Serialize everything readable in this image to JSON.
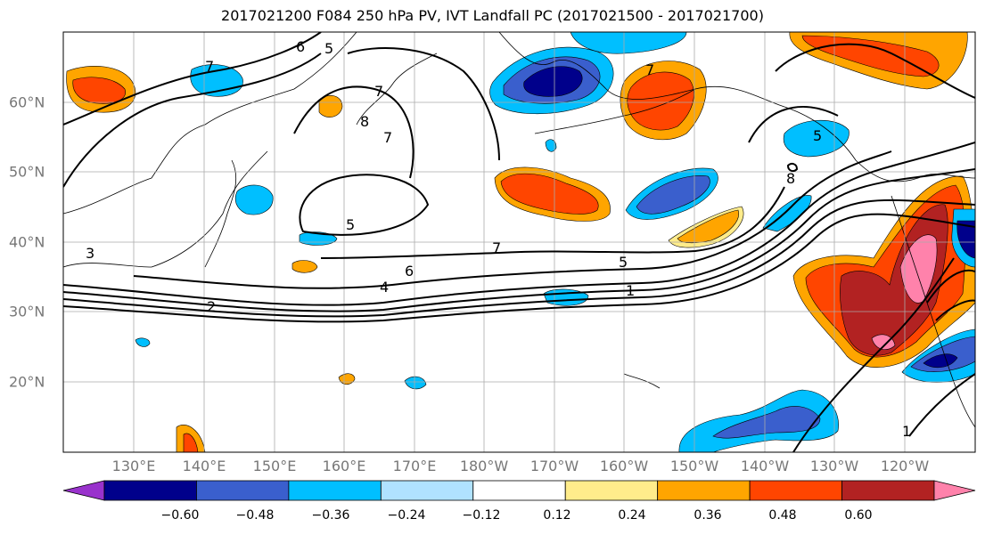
{
  "title": "2017021200 F084 250 hPa PV, IVT Landfall PC (2017021500 - 2017021700)",
  "axes": {
    "lon_labels": [
      "130°E",
      "140°E",
      "150°E",
      "160°E",
      "170°E",
      "180°W",
      "170°W",
      "160°W",
      "150°W",
      "140°W",
      "130°W",
      "120°W"
    ],
    "lat_labels": [
      "60°N",
      "50°N",
      "40°N",
      "30°N",
      "20°N"
    ]
  },
  "contour_labels": [
    "6",
    "5",
    "7",
    "7",
    "7",
    "8",
    "5",
    "8",
    "5",
    "7",
    "6",
    "4",
    "2",
    "3",
    "1",
    "5",
    "1",
    "7"
  ],
  "colorbar": {
    "tick_labels": [
      "−0.60",
      "−0.48",
      "−0.36",
      "−0.24",
      "−0.12",
      "0.12",
      "0.24",
      "0.36",
      "0.48",
      "0.60"
    ],
    "colors": [
      "#9932CC",
      "#00008B",
      "#3A5FCD",
      "#00BFFF",
      "#B0E2FF",
      "#FFFFFF",
      "#FFEC8B",
      "#FFA500",
      "#FF4500",
      "#B22222",
      "#FF82AB"
    ]
  },
  "fill_colors": {
    "neg_strong": "#00008B",
    "neg_mid": "#3A5FCD",
    "neg_weak": "#00BFFF",
    "pos_weak": "#FFEC8B",
    "pos_low": "#FFA500",
    "pos_mid": "#FF4500",
    "pos_strong": "#B22222",
    "pos_max": "#FF82AB"
  }
}
